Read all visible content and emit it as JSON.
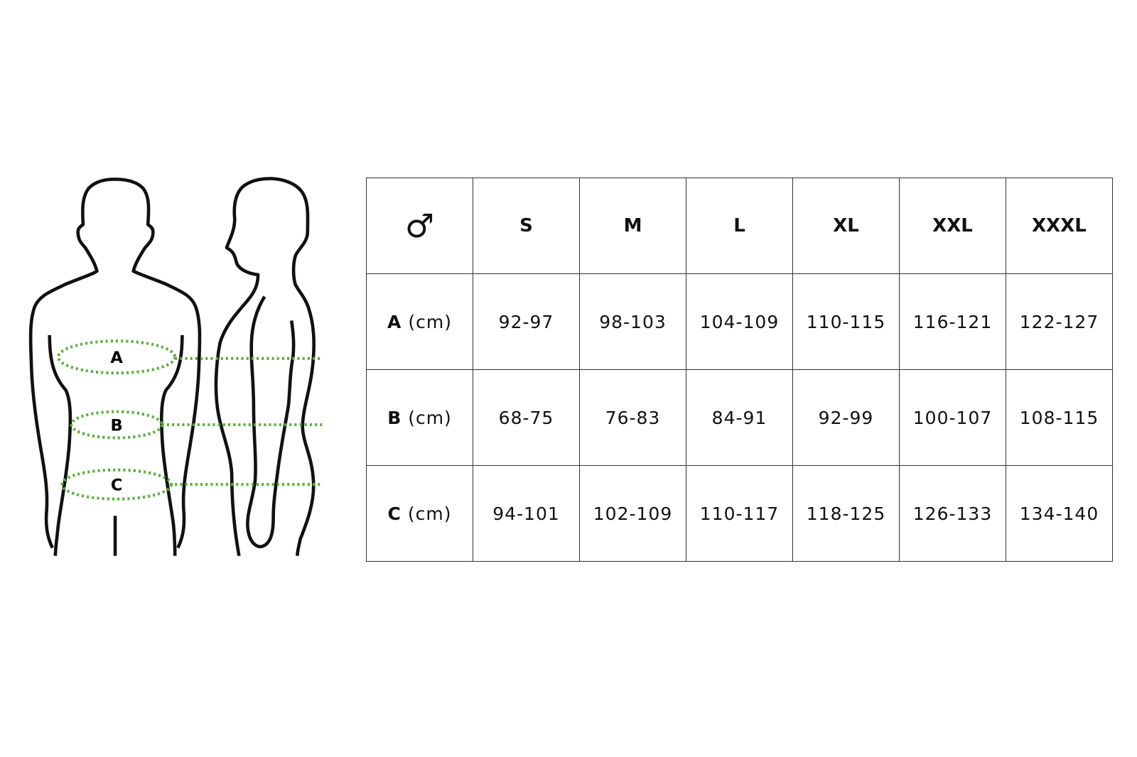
{
  "colors": {
    "measure_line": "#5aae3a",
    "outline": "#111111",
    "grid": "#333333"
  },
  "figure": {
    "labels": [
      "A",
      "B",
      "C"
    ]
  },
  "table": {
    "corner_icon": "male-symbol-icon",
    "corner_symbol": "♂",
    "sizes": [
      "S",
      "M",
      "L",
      "XL",
      "XXL",
      "XXXL"
    ],
    "rows": [
      {
        "label": "A",
        "unit": "(cm)",
        "values": [
          "92-97",
          "98-103",
          "104-109",
          "110-115",
          "116-121",
          "122-127"
        ]
      },
      {
        "label": "B",
        "unit": "(cm)",
        "values": [
          "68-75",
          "76-83",
          "84-91",
          "92-99",
          "100-107",
          "108-115"
        ]
      },
      {
        "label": "C",
        "unit": "(cm)",
        "values": [
          "94-101",
          "102-109",
          "110-117",
          "118-125",
          "126-133",
          "134-140"
        ]
      }
    ]
  }
}
